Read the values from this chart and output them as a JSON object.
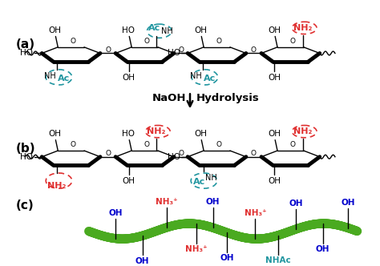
{
  "fig_width": 4.74,
  "fig_height": 3.32,
  "dpi": 100,
  "bg_color": "#ffffff",
  "label_a": "(a)",
  "label_b": "(b)",
  "label_c": "(c)",
  "reaction_text1": "NaOH",
  "reaction_text2": "Hydrolysis",
  "teal_color": "#2196A0",
  "red_color": "#e03030",
  "green_color": "#4aaa20",
  "blue_color": "#0000cc",
  "dark_color": "#000000"
}
